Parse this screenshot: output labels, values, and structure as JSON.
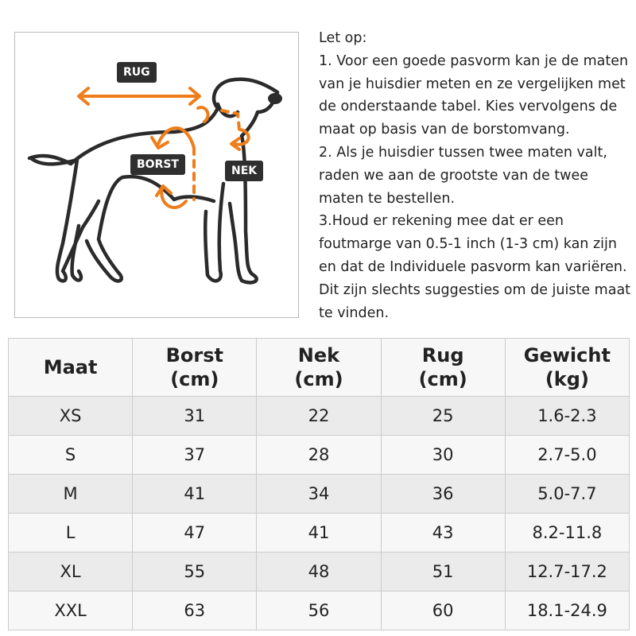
{
  "diagram": {
    "labels": {
      "back": "RUG",
      "chest": "BORST",
      "neck": "NEK"
    },
    "accent_color": "#ef7d1a",
    "label_bg": "#2f2f2f"
  },
  "notes": {
    "lines": [
      "Let op:",
      "1. Voor een goede pasvorm kan je de maten",
      "van je huisdier meten en ze vergelijken met",
      "de onderstaande tabel. Kies vervolgens de",
      "maat op basis van de borstomvang.",
      "2. Als je huisdier tussen twee maten valt,",
      "raden we aan de grootste van de twee",
      "maten te bestellen.",
      "3.Houd er rekening mee dat er een",
      "foutmarge van 0.5-1 inch (1-3 cm) kan zijn",
      "en dat de Individuele pasvorm kan variëren.",
      "Dit zijn slechts suggesties om de juiste maat",
      "te vinden."
    ]
  },
  "size_table": {
    "headers": [
      [
        "Maat",
        ""
      ],
      [
        "Borst",
        "(cm)"
      ],
      [
        "Nek",
        "(cm)"
      ],
      [
        "Rug",
        "(cm)"
      ],
      [
        "Gewicht",
        "(kg)"
      ]
    ],
    "rows": [
      [
        "XS",
        "31",
        "22",
        "25",
        "1.6-2.3"
      ],
      [
        "S",
        "37",
        "28",
        "30",
        "2.7-5.0"
      ],
      [
        "M",
        "41",
        "34",
        "36",
        "5.0-7.7"
      ],
      [
        "L",
        "47",
        "41",
        "43",
        "8.2-11.8"
      ],
      [
        "XL",
        "55",
        "48",
        "51",
        "12.7-17.2"
      ],
      [
        "XXL",
        "63",
        "56",
        "60",
        "18.1-24.9"
      ]
    ]
  }
}
